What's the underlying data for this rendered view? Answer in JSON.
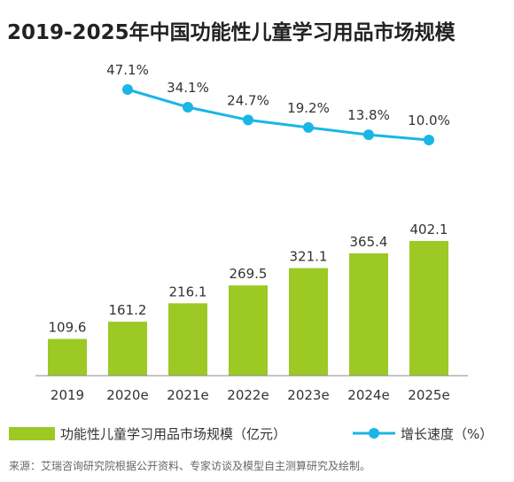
{
  "chart_data": {
    "type": "bar",
    "title": "2019-2025年中国功能性儿童学习用品市场规模",
    "categories": [
      "2019",
      "2020e",
      "2021e",
      "2022e",
      "2023e",
      "2024e",
      "2025e"
    ],
    "series": [
      {
        "name": "功能性儿童学习用品市场规模（亿元）",
        "type": "bar",
        "values": [
          109.6,
          161.2,
          216.1,
          269.5,
          321.1,
          365.4,
          402.1
        ],
        "labels": [
          "109.6",
          "161.2",
          "216.1",
          "269.5",
          "321.1",
          "365.4",
          "402.1"
        ]
      },
      {
        "name": "增长速度（%）",
        "type": "line",
        "x": [
          "2020e",
          "2021e",
          "2022e",
          "2023e",
          "2024e",
          "2025e"
        ],
        "values": [
          47.1,
          34.1,
          24.7,
          19.2,
          13.8,
          10.0
        ],
        "labels": [
          "47.1%",
          "34.1%",
          "24.7%",
          "19.2%",
          "13.8%",
          "10.0%"
        ]
      }
    ],
    "bar_ylim": [
      0,
      402.1
    ],
    "line_ylim": [
      10.0,
      47.1
    ],
    "legend_position": "bottom",
    "grid": false,
    "source": "来源：艾瑞咨询研究院根据公开资料、专家访谈及模型自主测算研究及绘制。",
    "colors": {
      "bar": "#9cc924",
      "line": "#1ab6e6",
      "text": "#333333",
      "axis": "#8a8a8a",
      "source": "#666666"
    }
  }
}
